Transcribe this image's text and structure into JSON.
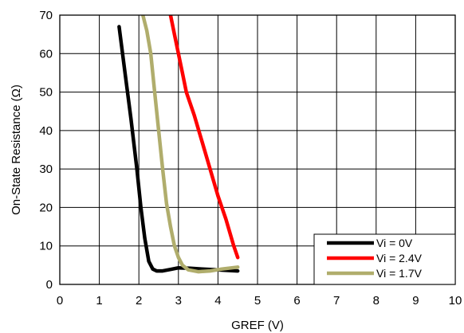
{
  "chart_data": {
    "type": "line",
    "title": "",
    "xlabel": "GREF (V)",
    "ylabel": "On-State Resistance (Ω)",
    "xlim": [
      0,
      10
    ],
    "ylim": [
      0,
      70
    ],
    "xticks": [
      "0",
      "1",
      "2",
      "3",
      "4",
      "5",
      "6",
      "7",
      "8",
      "9",
      "10"
    ],
    "yticks": [
      "0",
      "10",
      "20",
      "30",
      "40",
      "50",
      "60",
      "70"
    ],
    "grid": true,
    "legend_position": "bottom-right",
    "series": [
      {
        "name": "Vi = 0V",
        "color": "#000000",
        "x": [
          1.5,
          1.65,
          1.8,
          1.95,
          2.05,
          2.15,
          2.25,
          2.35,
          2.45,
          2.6,
          2.8,
          3.0,
          3.3,
          3.6,
          4.0,
          4.5
        ],
        "y": [
          67,
          55,
          43,
          30,
          20,
          12,
          6,
          4,
          3.5,
          3.5,
          3.9,
          4.3,
          4.2,
          4.0,
          3.8,
          3.5
        ]
      },
      {
        "name": "Vi = 2.4V",
        "color": "#ff0000",
        "x": [
          2.8,
          2.9,
          3.0,
          3.1,
          3.2,
          3.4,
          3.6,
          3.8,
          4.0,
          4.2,
          4.4,
          4.5
        ],
        "y": [
          70,
          65,
          60,
          55,
          50,
          44,
          37,
          30,
          23,
          17,
          10,
          7
        ]
      },
      {
        "name": "Vi = 1.7V",
        "color": "#b0ad6c",
        "x": [
          2.1,
          2.2,
          2.3,
          2.4,
          2.5,
          2.6,
          2.7,
          2.8,
          2.9,
          3.0,
          3.1,
          3.25,
          3.5,
          3.8,
          4.1,
          4.5
        ],
        "y": [
          70,
          66,
          60,
          50,
          40,
          30,
          21,
          15,
          10,
          7,
          5,
          3.8,
          3.3,
          3.5,
          4.0,
          4.5
        ]
      }
    ]
  }
}
